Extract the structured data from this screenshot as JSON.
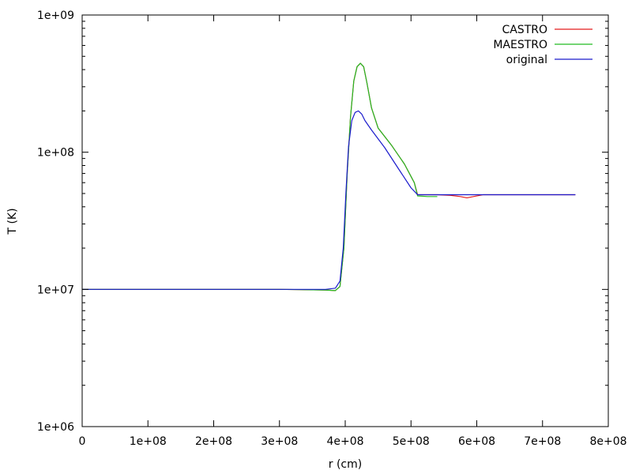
{
  "chart_data": {
    "type": "line",
    "title": "",
    "xlabel": "r (cm)",
    "ylabel": "T (K)",
    "xlim": [
      0,
      800000000
    ],
    "ylim": [
      1000000,
      1000000000
    ],
    "yscale": "log",
    "grid": false,
    "legend_position": "top-right",
    "x_tick_labels": [
      "0",
      "1e+08",
      "2e+08",
      "3e+08",
      "4e+08",
      "5e+08",
      "6e+08",
      "7e+08",
      "8e+08"
    ],
    "x_tick_values": [
      0,
      100000000,
      200000000,
      300000000,
      400000000,
      500000000,
      600000000,
      700000000,
      800000000
    ],
    "y_tick_labels": [
      "1e+06",
      "1e+07",
      "1e+08",
      "1e+09"
    ],
    "y_tick_values": [
      1000000,
      10000000,
      100000000,
      1000000000
    ],
    "series": [
      {
        "name": "CASTRO",
        "color": "#e41a1c",
        "x": [
          0,
          100000000,
          200000000,
          300000000,
          370000000,
          385000000,
          392000000,
          398000000,
          403000000,
          408000000,
          413000000,
          418000000,
          423000000,
          428000000,
          433000000,
          440000000,
          450000000,
          470000000,
          490000000,
          505000000,
          510000000,
          540000000,
          560000000,
          575000000,
          585000000,
          595000000,
          610000000,
          650000000,
          700000000,
          750000000
        ],
        "y": [
          10000000,
          10000000,
          10000000,
          10000000,
          9900000,
          9800000,
          10500000,
          20000000,
          70000000,
          180000000,
          330000000,
          420000000,
          445000000,
          420000000,
          320000000,
          210000000,
          150000000,
          113000000,
          82000000,
          60000000,
          49000000,
          49000000,
          48500000,
          47500000,
          46500000,
          47500000,
          49000000,
          49000000,
          49000000,
          49000000
        ]
      },
      {
        "name": "MAESTRO",
        "color": "#22bb22",
        "x": [
          0,
          100000000,
          200000000,
          300000000,
          370000000,
          385000000,
          392000000,
          398000000,
          403000000,
          408000000,
          413000000,
          418000000,
          423000000,
          428000000,
          433000000,
          440000000,
          450000000,
          470000000,
          490000000,
          505000000,
          510000000,
          525000000,
          540000000
        ],
        "y": [
          10000000,
          10000000,
          10000000,
          10000000,
          9900000,
          9800000,
          10500000,
          20000000,
          70000000,
          180000000,
          330000000,
          420000000,
          445000000,
          420000000,
          320000000,
          210000000,
          150000000,
          113000000,
          82000000,
          60000000,
          48000000,
          47500000,
          47500000
        ]
      },
      {
        "name": "original",
        "color": "#1a1acc",
        "x": [
          0,
          100000000,
          200000000,
          300000000,
          370000000,
          385000000,
          392000000,
          397000000,
          401000000,
          405000000,
          410000000,
          415000000,
          420000000,
          425000000,
          430000000,
          440000000,
          460000000,
          480000000,
          500000000,
          510000000,
          550000000,
          600000000,
          650000000,
          700000000,
          750000000
        ],
        "y": [
          10000000,
          10000000,
          10000000,
          10000000,
          10000000,
          10200000,
          11500000,
          20000000,
          50000000,
          110000000,
          170000000,
          195000000,
          200000000,
          190000000,
          170000000,
          145000000,
          108000000,
          77000000,
          55000000,
          49000000,
          49000000,
          49000000,
          49000000,
          49000000,
          49000000
        ]
      }
    ]
  }
}
